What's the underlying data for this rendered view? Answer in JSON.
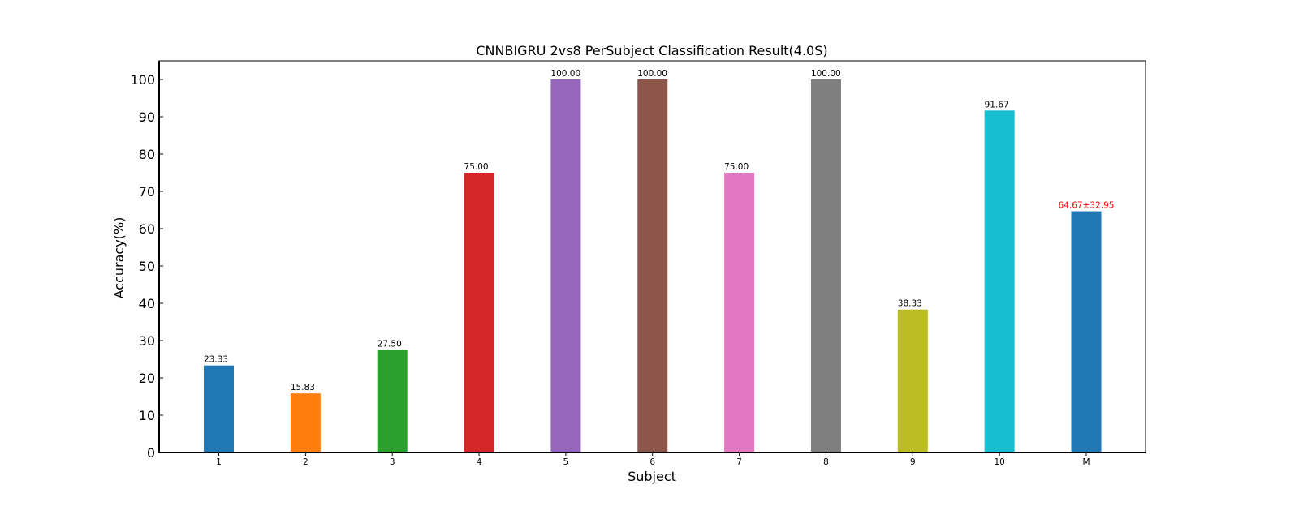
{
  "chart_data": {
    "type": "bar",
    "title": "CNNBIGRU 2vs8 PerSubject Classification Result(4.0S)",
    "xlabel": "Subject",
    "ylabel": "Accuracy(%)",
    "ylim": [
      0,
      105
    ],
    "yticks": [
      0,
      10,
      20,
      30,
      40,
      50,
      60,
      70,
      80,
      90,
      100
    ],
    "grid": false,
    "categories": [
      "1",
      "2",
      "3",
      "4",
      "5",
      "6",
      "7",
      "8",
      "9",
      "10",
      "M"
    ],
    "values": [
      23.33,
      15.83,
      27.5,
      75.0,
      100.0,
      100.0,
      75.0,
      100.0,
      38.33,
      91.67,
      64.67
    ],
    "value_labels": [
      "23.33",
      "15.83",
      "27.50",
      "75.00",
      "100.00",
      "100.00",
      "75.00",
      "100.00",
      "38.33",
      "91.67",
      "64.67±32.95"
    ],
    "colors": [
      "#1f77b4",
      "#ff7f0e",
      "#2ca02c",
      "#d62728",
      "#9467bd",
      "#8c564b",
      "#e377c2",
      "#7f7f7f",
      "#bcbd22",
      "#17becf",
      "#1f77b4"
    ],
    "label_colors": [
      "#000000",
      "#000000",
      "#000000",
      "#000000",
      "#000000",
      "#000000",
      "#000000",
      "#000000",
      "#000000",
      "#000000",
      "#ff0000"
    ]
  }
}
